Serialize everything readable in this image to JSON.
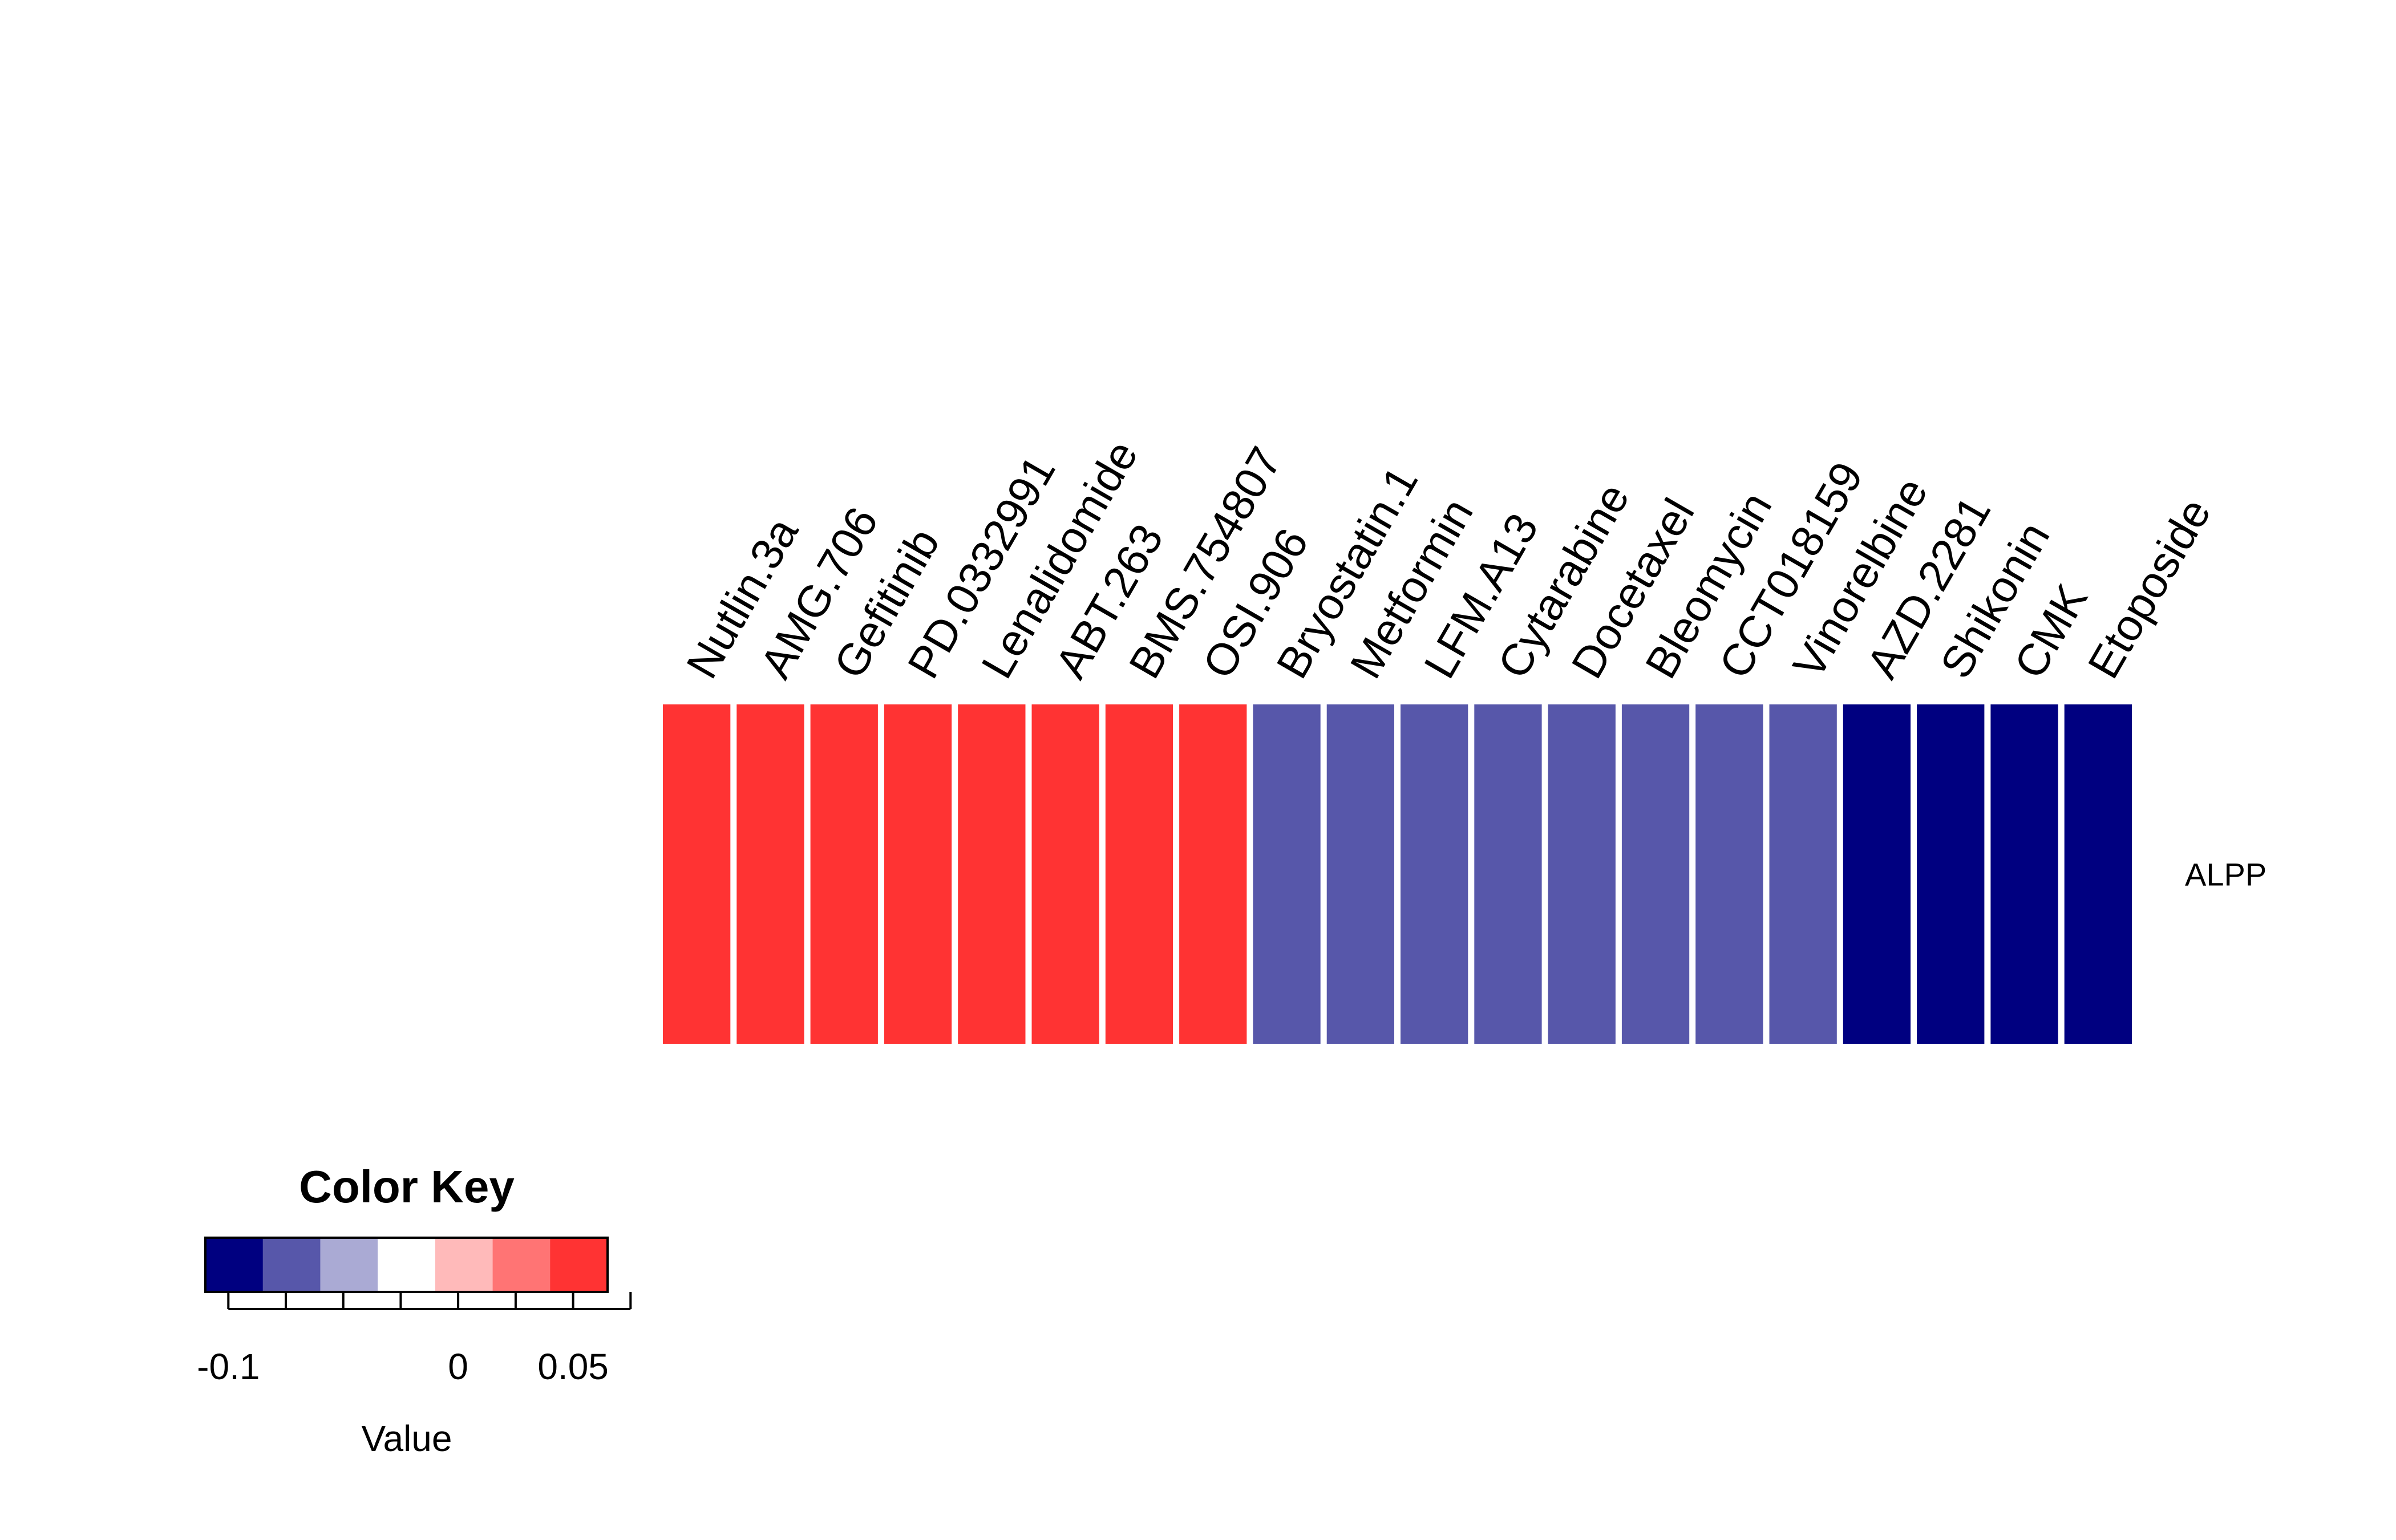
{
  "chart_data": {
    "type": "heatmap",
    "title": "",
    "columns": [
      "Nutlin.3a",
      "AMG.706",
      "Gefitinib",
      "PD.0332991",
      "Lenalidomide",
      "ABT.263",
      "BMS.754807",
      "OSI.906",
      "Bryostatin.1",
      "Metformin",
      "LFM.A13",
      "Cytarabine",
      "Docetaxel",
      "Bleomycin",
      "CCT018159",
      "Vinorelbine",
      "AZD.2281",
      "Shikonin",
      "CMK",
      "Etoposide"
    ],
    "rows": [
      "ALPP"
    ],
    "values": [
      [
        0.075,
        0.075,
        0.05,
        0.05,
        0.05,
        0.05,
        0.05,
        0.05,
        -0.075,
        -0.075,
        -0.075,
        -0.075,
        -0.075,
        -0.075,
        -0.075,
        -0.075,
        -0.1,
        -0.1,
        -0.1,
        -0.1
      ]
    ],
    "color_key": {
      "title": "Color Key",
      "xlabel": "Value",
      "breaks": [
        -0.11,
        -0.085,
        -0.06,
        -0.035,
        -0.01,
        0.015,
        0.04,
        0.065
      ],
      "colors": [
        "#000080",
        "#5757aa",
        "#aaaad4",
        "#ffffff",
        "#ffbaba",
        "#ff7474",
        "#ff3333"
      ],
      "ticks": [
        -0.1,
        -0.075,
        -0.05,
        -0.025,
        0,
        0.025,
        0.05,
        0.075
      ],
      "tick_labels": [
        {
          "value": -0.1,
          "label": "-0.1"
        },
        {
          "value": 0,
          "label": "0"
        },
        {
          "value": 0.05,
          "label": "0.05"
        }
      ]
    }
  }
}
